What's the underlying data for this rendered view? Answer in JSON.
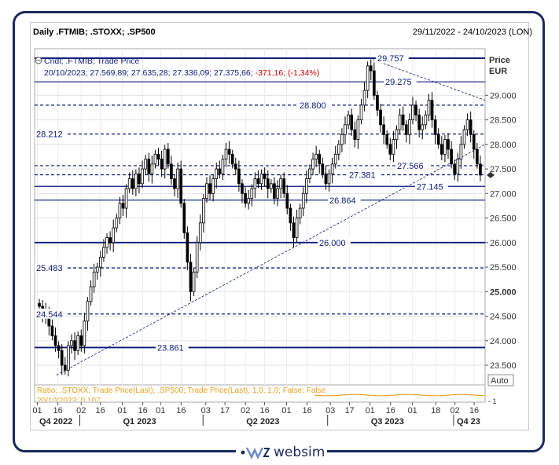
{
  "header": {
    "title": "Daily .FTMIB; .STOXX; .SP500",
    "date_range": "29/11/2022 - 24/10/2023 (LON)"
  },
  "legend": {
    "line1": "Cndl; .FTMIB; Trade Price",
    "line2_prefix": "20/10/2023; 27.569,89; 27.635,28; 27.336,09; 27.375,66; ",
    "line2_change": "-371,16; (-1,34%)"
  },
  "axis": {
    "price_label": "Price",
    "currency_label": "EUR",
    "auto_label": "Auto",
    "y_ticks": [
      "29.000",
      "28.500",
      "28.000",
      "27.500",
      "27.000",
      "26.500",
      "26.000",
      "25.500",
      "25.000",
      "24.500",
      "24.000",
      "23.500"
    ],
    "bold_tick": "25.000",
    "x_day_ticks": [
      "01",
      "16",
      "02",
      "16",
      "01",
      "16",
      "01",
      "16",
      "03",
      "17",
      "02",
      "16",
      "01",
      "16",
      "03",
      "17",
      "01",
      "16",
      "01",
      "18",
      "02",
      "16"
    ],
    "quarters": [
      "Q4 2022",
      "Q1 2023",
      "Q2 2023",
      "Q3 2023",
      "Q4 23"
    ]
  },
  "ratio_panel": {
    "line1": "Ratio; .STOXX; Trade Price(Last); .SP500; Trade Price(Last);  1,0; 1,0; False; False",
    "line2": "20/10/2023; 0,107",
    "tick": "-  1"
  },
  "levels": [
    "29.757",
    "29.275",
    "28.800",
    "28.212",
    "27.566",
    "27.381",
    "27.145",
    "26.864",
    "26.000",
    "25.483",
    "24.544",
    "23.861"
  ],
  "brand": {
    "name": "websim"
  },
  "colors": {
    "navy": "#0a1a7a",
    "candle": "#000000",
    "ratio": "#e8a020",
    "change_red": "#d40000"
  },
  "chart_data": {
    "type": "candlestick",
    "title": "Daily .FTMIB; .STOXX; .SP500",
    "ylabel": "Price EUR",
    "ylim": [
      23100,
      29950
    ],
    "x_range": [
      "29/11/2022",
      "24/10/2023"
    ],
    "last_close": 27375.66,
    "horizontal_levels": [
      29757,
      29275,
      28800,
      28212,
      27566,
      27381,
      27145,
      26864,
      26000,
      25483,
      24544,
      23861
    ],
    "trendlines": [
      {
        "style": "dashed",
        "from": [
          "2022-12-15",
          23300
        ],
        "to": [
          "2023-10-24",
          28000
        ]
      },
      {
        "style": "dashed",
        "from": [
          "2023-07-31",
          29757
        ],
        "to": [
          "2023-10-24",
          28900
        ]
      }
    ],
    "series": [
      {
        "close": [
          24700,
          24500,
          24600,
          24300,
          24100,
          23900,
          23800,
          23500,
          23400,
          23900,
          24000,
          23800,
          24100,
          23900,
          24400,
          24800,
          25100,
          25400,
          25500,
          25700,
          25900,
          26100,
          26000,
          26300,
          26500,
          26800,
          26700,
          27100,
          27300,
          27100,
          27400,
          27200,
          27500,
          27700,
          27400,
          27600,
          27800,
          27700,
          27500,
          27900,
          27600,
          27300,
          27100,
          27500,
          26800,
          26200,
          25600,
          25000,
          25400,
          26000,
          26400,
          26900,
          27200,
          27000,
          27300,
          27500,
          27400,
          27700,
          27900,
          27800,
          27600,
          27500,
          27200,
          27000,
          26800,
          26900,
          27100,
          27300,
          27200,
          27400,
          27300,
          27100,
          27200,
          26900,
          27100,
          27300,
          27000,
          26700,
          26400,
          26100,
          26500,
          26700,
          27000,
          27300,
          27500,
          27700,
          27800,
          27600,
          27400,
          27200,
          27400,
          27600,
          27800,
          28000,
          28200,
          28400,
          28600,
          28300,
          28100,
          28500,
          28800,
          29100,
          29600,
          29500,
          29000,
          28700,
          28400,
          28200,
          28000,
          27800,
          28100,
          28300,
          28600,
          28400,
          28200,
          28500,
          28800,
          28600,
          28300,
          28400,
          28600,
          28900,
          28500,
          28200,
          28000,
          27800,
          28100,
          27900,
          27600,
          27400,
          27700,
          28000,
          28300,
          28500,
          28200,
          27900,
          27600,
          27375
        ]
      }
    ]
  }
}
